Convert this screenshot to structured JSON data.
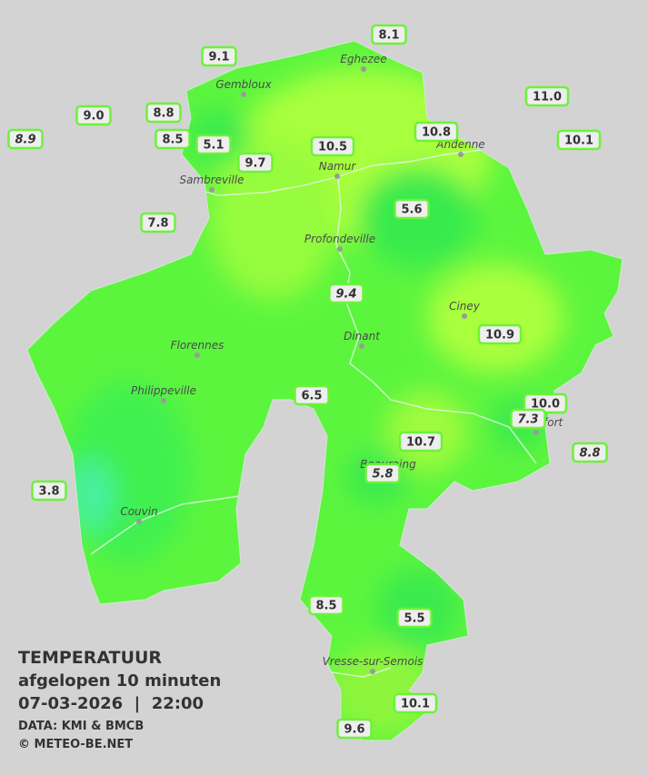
{
  "legend": {
    "title": "TEMPERATUUR",
    "subtitle": "afgelopen 10 minuten",
    "datetime": "07-03-2026  |  22:00",
    "source": "DATA: KMI & BMCB",
    "copyright": "© METEO-BE.NET"
  },
  "cities": [
    "Eghezee",
    "Gembloux",
    "Andenne",
    "Namur",
    "Sambreville",
    "Profondeville",
    "Ciney",
    "Florennes",
    "Dinant",
    "Philippeville",
    "Rochefort",
    "Beauraing",
    "Couvin",
    "Vresse-sur-Semois"
  ],
  "stations": [
    "8.1",
    "9.1",
    "11.0",
    "9.0",
    "8.8",
    "8.9",
    "8.5",
    "5.1",
    "10.8",
    "10.1",
    "10.5",
    "9.7",
    "5.6",
    "7.8",
    "9.4",
    "10.9",
    "6.5",
    "10.0",
    "7.3",
    "8.8",
    "10.7",
    "5.8",
    "3.8",
    "8.5",
    "5.5",
    "10.1",
    "9.6"
  ]
}
